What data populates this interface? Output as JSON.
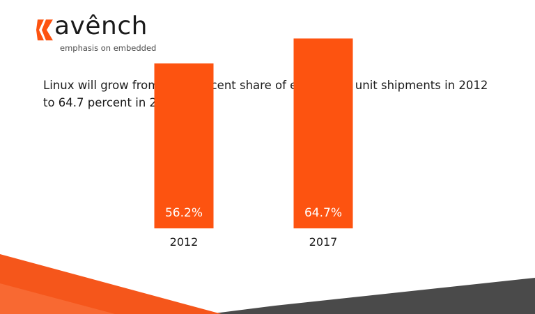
{
  "brand": {
    "logo_text": "avênch",
    "tagline": "emphasis on embedded"
  },
  "headline": "Linux will grow from 56.2 percent share of embedded unit shipments in 2012 to 64.7 percent in 2017",
  "colors": {
    "accent": "#fd5310",
    "bar_label": "#ffffff",
    "text": "#1a1a1a",
    "decor_dark": "#4a4a4a",
    "decor_orange": "#f5561b"
  },
  "chart_data": {
    "type": "bar",
    "categories": [
      "2012",
      "2017"
    ],
    "values": [
      56.2,
      64.7
    ],
    "value_labels": [
      "56.2%",
      "64.7%"
    ],
    "title": "",
    "xlabel": "",
    "ylabel": "",
    "ylim": [
      0,
      70
    ],
    "grid": false,
    "legend": "none"
  }
}
